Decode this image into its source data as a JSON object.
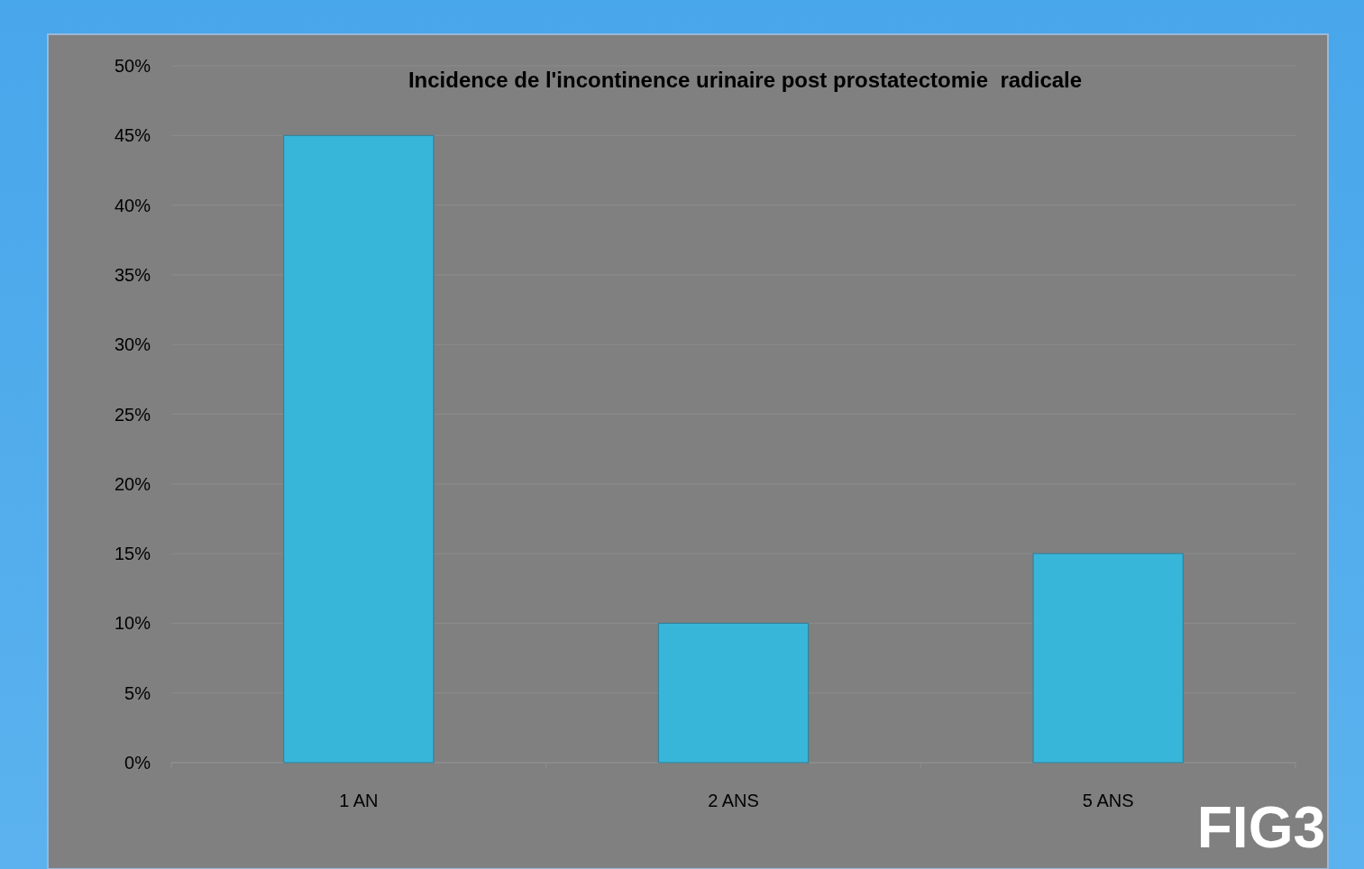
{
  "chart_data": {
    "type": "bar",
    "title": "Incidence de l'incontinence urinaire post prostatectomie  radicale",
    "categories": [
      "1 AN",
      "2 ANS",
      "5 ANS"
    ],
    "values": [
      45,
      10,
      15
    ],
    "color": "#38b6da",
    "ylim": [
      0,
      50
    ],
    "yticks": [
      {
        "value": 0,
        "label": "0%"
      },
      {
        "value": 5,
        "label": "5%"
      },
      {
        "value": 10,
        "label": "10%"
      },
      {
        "value": 15,
        "label": "15%"
      },
      {
        "value": 20,
        "label": "20%"
      },
      {
        "value": 25,
        "label": "25%"
      },
      {
        "value": 30,
        "label": "30%"
      },
      {
        "value": 35,
        "label": "35%"
      },
      {
        "value": 40,
        "label": "40%"
      },
      {
        "value": 45,
        "label": "45%"
      },
      {
        "value": 50,
        "label": "50%"
      }
    ],
    "grid": "y",
    "annotations": [
      "FIG3"
    ]
  }
}
